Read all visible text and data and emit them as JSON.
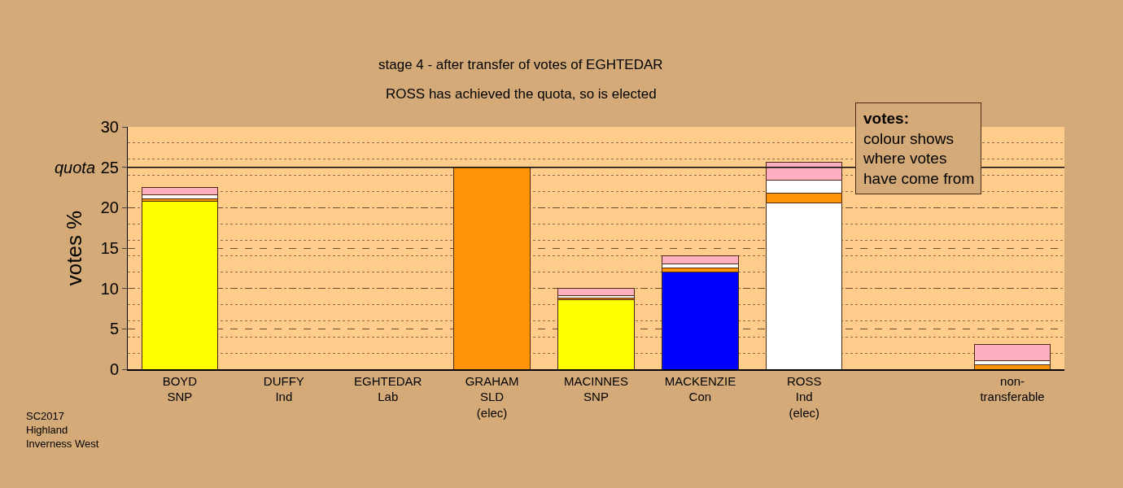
{
  "chart_data": {
    "type": "bar",
    "stacked": true,
    "title": "stage 4 - after transfer of votes of EGHTEDAR",
    "subtitle": "ROSS has achieved the quota, so is elected",
    "ylabel": "votes %",
    "categories": [
      "BOYD\nSNP",
      "DUFFY\nInd",
      "EGHTEDAR\nLab",
      "GRAHAM\nSLD\n(elec)",
      "MACINNES\nSNP",
      "MACKENZIE\nCon",
      "ROSS\nInd\n(elec)",
      null,
      "non-\ntransferable"
    ],
    "series": [
      {
        "colors": [
          "#ffff00",
          "#ffffff",
          "#ffb0c0",
          "#ff9408",
          "#ffff00",
          "#0000ff",
          "#ffffff",
          "#ffffff",
          "#ff9408"
        ],
        "values": [
          20.8,
          0,
          0,
          25.0,
          8.6,
          12.0,
          20.6,
          null,
          0.6
        ]
      },
      {
        "color": "#ff9408",
        "values": [
          0.3,
          0,
          0,
          0,
          0.2,
          0.5,
          1.2,
          null,
          0
        ]
      },
      {
        "color": "#ffffff",
        "values": [
          0.5,
          0,
          0,
          0,
          0.3,
          0.5,
          1.6,
          null,
          0.5
        ]
      },
      {
        "color": "#ffb0c0",
        "values": [
          0.9,
          0,
          0,
          0,
          0.9,
          1.0,
          2.2,
          null,
          2.0
        ]
      }
    ],
    "ylim": [
      0,
      30
    ],
    "yticks": [
      0,
      5,
      10,
      15,
      20,
      25,
      30
    ],
    "ref_lines": [
      {
        "axis": "y",
        "value": 25,
        "label": "quota",
        "color": "#000000",
        "line_style": "solid"
      }
    ],
    "grid": "y",
    "annotations": [
      "votes:",
      "colour shows\nwhere votes\nhave come from",
      "SC2017\nHighland\nInverness West"
    ]
  }
}
